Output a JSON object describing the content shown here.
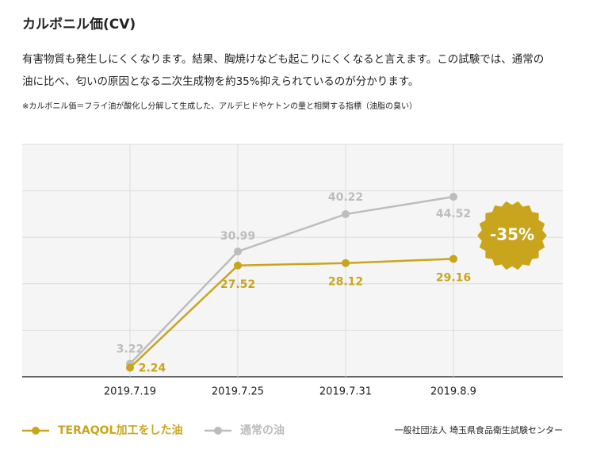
{
  "chart_data": {
    "type": "line",
    "title": "カルボニル価(CV)",
    "description": [
      "有害物質も発生しにくくなります。結果、胸焼けなども起こりにくくなると言えます。この試験では、通常の",
      "油に比べ、匂いの原因となる二次生成物を約35%抑えられているのが分かります。"
    ],
    "note": "※カルボニル価＝フライ油が酸化し分解して生成した、アルデヒドやケトンの量と相関する指標（油脂の臭い）",
    "categories": [
      "2019.7.19",
      "2019.7.25",
      "2019.7.31",
      "2019.8.9"
    ],
    "series": [
      {
        "name": "TERAQOL加工をした油",
        "color": "#c9a51d",
        "values": [
          2.24,
          27.52,
          28.12,
          29.16
        ]
      },
      {
        "name": "通常の油",
        "color": "#bdbdbd",
        "values": [
          3.22,
          30.99,
          40.22,
          44.52
        ]
      }
    ],
    "ylim": [
      0,
      57.5
    ],
    "yticks": [
      0,
      11.5,
      23,
      34.5,
      46,
      57.5
    ],
    "grid": true,
    "annotation": "-35%",
    "source": "一般社団法人 埼玉県食品衛生試験センター"
  }
}
